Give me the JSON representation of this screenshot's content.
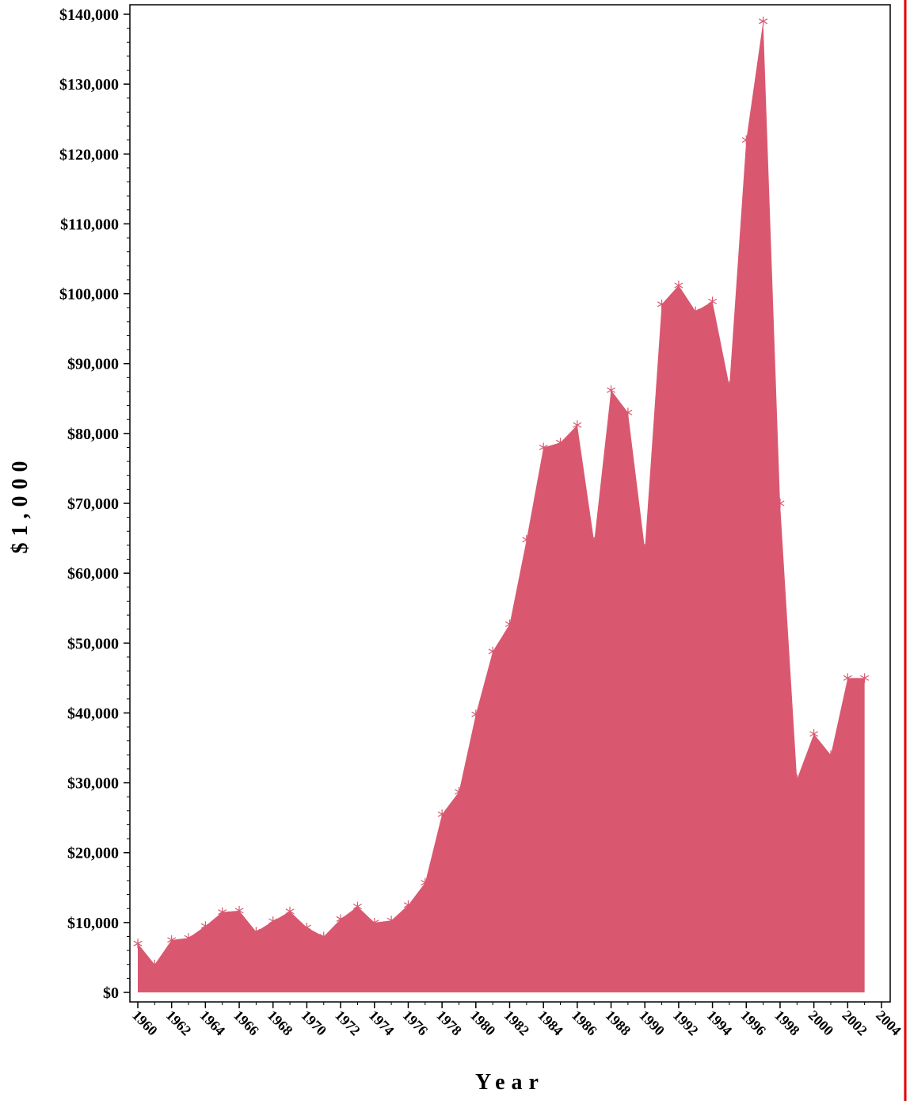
{
  "chart_data": {
    "type": "area",
    "title": "",
    "xlabel": "Year",
    "ylabel": "$1,000",
    "xlim": [
      1960,
      2004
    ],
    "ylim": [
      0,
      140000
    ],
    "x_tick_labels": [
      "1960",
      "1962",
      "1964",
      "1966",
      "1968",
      "1970",
      "1972",
      "1974",
      "1976",
      "1978",
      "1980",
      "1982",
      "1984",
      "1986",
      "1988",
      "1990",
      "1992",
      "1994",
      "1996",
      "1998",
      "2000",
      "2002",
      "2004"
    ],
    "y_tick_labels": [
      "$0",
      "$10,000",
      "$20,000",
      "$30,000",
      "$40,000",
      "$50,000",
      "$60,000",
      "$70,000",
      "$80,000",
      "$90,000",
      "$100,000",
      "$110,000",
      "$120,000",
      "$130,000",
      "$140,000"
    ],
    "y_tick_values": [
      0,
      10000,
      20000,
      30000,
      40000,
      50000,
      60000,
      70000,
      80000,
      90000,
      100000,
      110000,
      120000,
      130000,
      140000
    ],
    "x": [
      1960,
      1961,
      1962,
      1963,
      1964,
      1965,
      1966,
      1967,
      1968,
      1969,
      1970,
      1971,
      1972,
      1973,
      1974,
      1975,
      1976,
      1977,
      1978,
      1979,
      1980,
      1981,
      1982,
      1983,
      1984,
      1985,
      1986,
      1987,
      1988,
      1989,
      1990,
      1991,
      1992,
      1993,
      1994,
      1995,
      1996,
      1997,
      1998,
      1999,
      2000,
      2001,
      2002,
      2003
    ],
    "values": [
      7000,
      4000,
      7500,
      7800,
      9500,
      11500,
      11700,
      8700,
      10200,
      11600,
      9300,
      8000,
      10500,
      12300,
      10000,
      10300,
      12500,
      15700,
      25500,
      28700,
      39800,
      48800,
      52700,
      64800,
      78000,
      78700,
      81200,
      64500,
      86200,
      83000,
      63500,
      98500,
      101200,
      97500,
      98900,
      86800,
      122000,
      139000,
      70000,
      30500,
      37000,
      34000,
      45000,
      45000
    ],
    "marker": "asterisk",
    "colors": {
      "fill": "#d95870",
      "marker": "#d95870",
      "frame": "#000000",
      "right_border": "#e00000"
    },
    "grid": false,
    "legend": "none"
  }
}
